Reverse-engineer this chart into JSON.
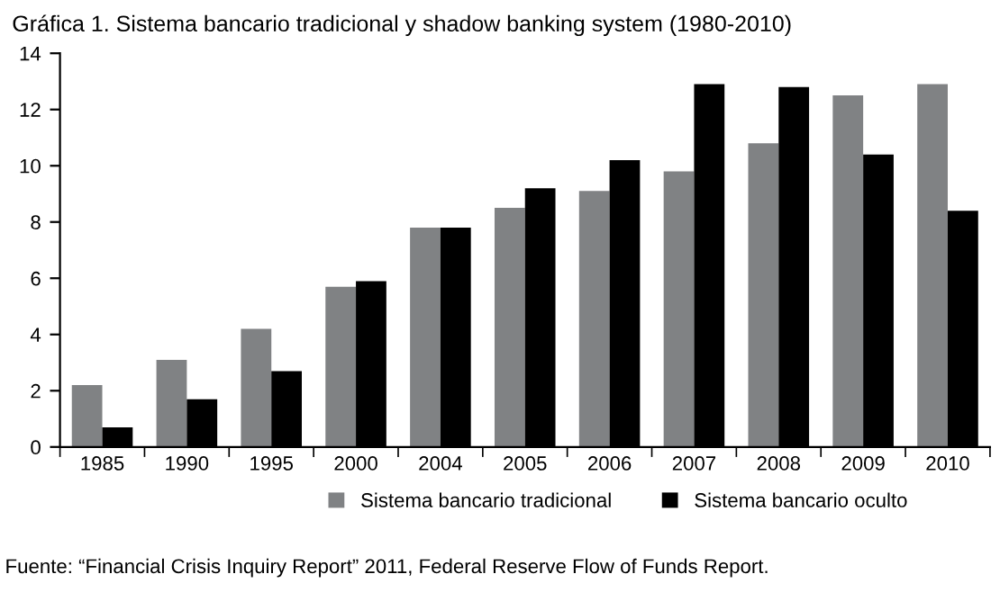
{
  "chart_data": {
    "type": "bar",
    "title": "Gráfica 1. Sistema bancario tradicional y shadow banking system (1980-2010)",
    "categories": [
      "1985",
      "1990",
      "1995",
      "2000",
      "2004",
      "2005",
      "2006",
      "2007",
      "2008",
      "2009",
      "2010"
    ],
    "series": [
      {
        "name": "Sistema bancario tradicional",
        "color": "#808284",
        "values": [
          2.2,
          3.1,
          4.2,
          5.7,
          7.8,
          8.5,
          9.1,
          9.8,
          10.8,
          12.5,
          12.9
        ]
      },
      {
        "name": "Sistema bancario oculto",
        "color": "#000000",
        "values": [
          0.7,
          1.7,
          2.7,
          5.9,
          7.8,
          9.2,
          10.2,
          12.9,
          12.8,
          10.4,
          8.4
        ]
      }
    ],
    "ylim": [
      0,
      14
    ],
    "yticks": [
      0,
      2,
      4,
      6,
      8,
      10,
      12,
      14
    ],
    "grid": false,
    "legend": "bottom",
    "annotations": [
      "Fuente: “Financial Crisis Inquiry Report” 2011, Federal Reserve Flow of Funds Report."
    ]
  }
}
